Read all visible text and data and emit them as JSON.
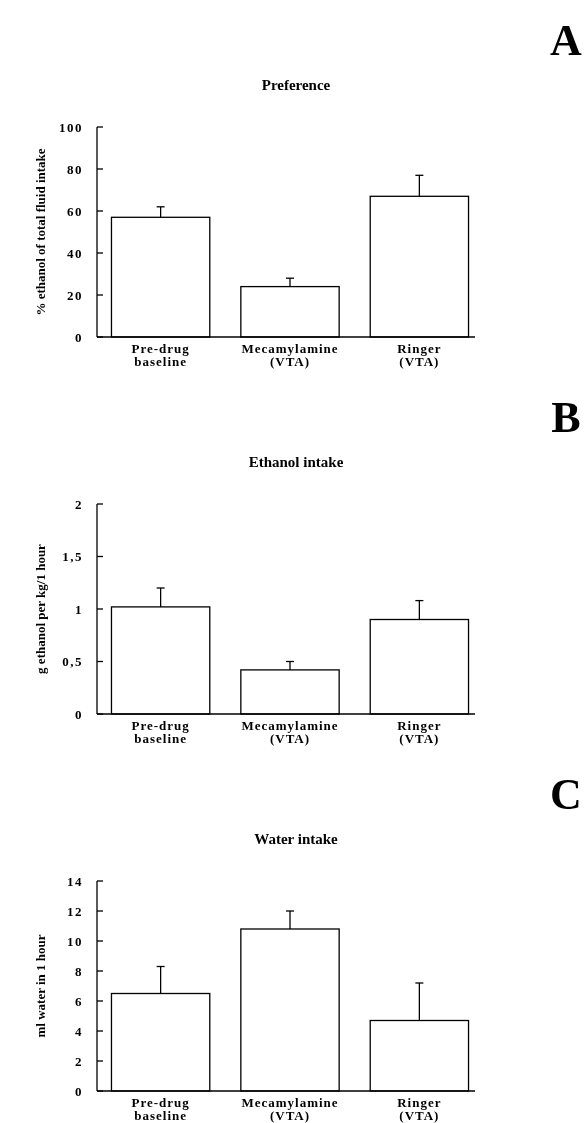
{
  "chart_data": [
    {
      "type": "bar",
      "title": "Preference",
      "ylabel": "% ethanol of total fluid intake",
      "annotations": [
        "A"
      ],
      "categories": [
        "Pre-drug\nbaseline",
        "Mecamylamine\n(VTA)",
        "Ringer\n(VTA)"
      ],
      "values": [
        57,
        24,
        67
      ],
      "errors": [
        [
          57,
          62
        ],
        [
          24,
          28
        ],
        [
          67,
          77
        ]
      ],
      "color": "#ffffff",
      "ylim": [
        0,
        100
      ],
      "yticks": [
        0,
        20,
        40,
        60,
        80,
        100
      ]
    },
    {
      "type": "bar",
      "title": "Ethanol intake",
      "ylabel": "g ethanol per kg/1 hour",
      "annotations": [
        "B"
      ],
      "categories": [
        "Pre-drug\nbaseline",
        "Mecamylamine\n(VTA)",
        "Ringer\n(VTA)"
      ],
      "values": [
        1.02,
        0.42,
        0.9
      ],
      "errors": [
        [
          1.02,
          1.2
        ],
        [
          0.42,
          0.5
        ],
        [
          0.9,
          1.08
        ]
      ],
      "color": "#ffffff",
      "ylim": [
        0,
        2
      ],
      "yticks": [
        0,
        {
          "value": 0.5,
          "label": "0,5"
        },
        1,
        {
          "value": 1.5,
          "label": "1,5"
        },
        2
      ]
    },
    {
      "type": "bar",
      "title": "Water intake",
      "ylabel": "ml water in 1 hour",
      "annotations": [
        "C"
      ],
      "categories": [
        "Pre-drug\nbaseline",
        "Mecamylamine\n(VTA)",
        "Ringer\n(VTA)"
      ],
      "values": [
        6.5,
        10.8,
        4.7
      ],
      "errors": [
        [
          6.5,
          8.3
        ],
        [
          10.8,
          12
        ],
        [
          4.7,
          7.2
        ]
      ],
      "color": "#ffffff",
      "ylim": [
        0,
        14
      ],
      "yticks": [
        0,
        2,
        4,
        6,
        8,
        10,
        12,
        14
      ]
    }
  ]
}
